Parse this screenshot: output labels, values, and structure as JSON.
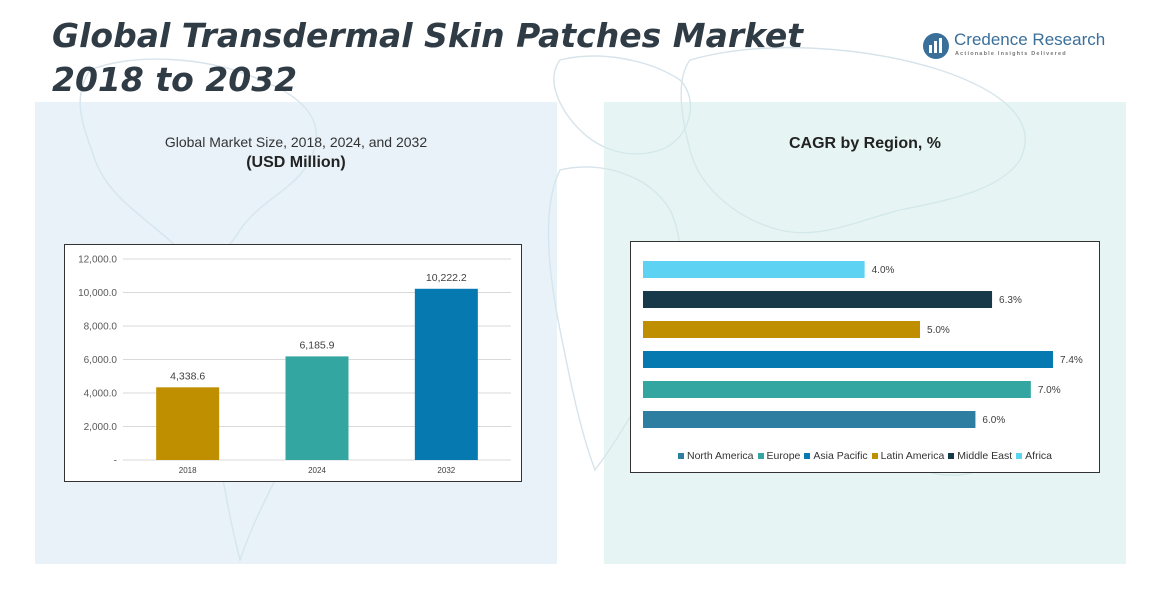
{
  "page": {
    "title": "Global Transdermal Skin Patches Market 2018 to 2032",
    "logo": {
      "name": "Credence Research",
      "tagline": "Actionable Insights Delivered",
      "icon": "bar-chart-logo-icon"
    }
  },
  "colors": {
    "title": "#2f3b45",
    "bar_2018": "#bf8f00",
    "bar_2024": "#33a6a1",
    "bar_2032": "#0579b0",
    "north_america": "#2e7ea1",
    "europe": "#33a6a1",
    "asia_pacific": "#0579b0",
    "latin_america": "#bf8f00",
    "middle_east": "#17394a",
    "africa": "#5ed2f2"
  },
  "chart_data": [
    {
      "type": "bar",
      "title": "Global Market Size, 2018, 2024, and 2032",
      "subtitle": "(USD Million)",
      "categories": [
        "2018",
        "2024",
        "2032"
      ],
      "values": [
        4338.6,
        6185.9,
        10222.2
      ],
      "value_labels": [
        "4,338.6",
        "6,185.9",
        "10,222.2"
      ],
      "colors": [
        "#bf8f00",
        "#33a6a1",
        "#0579b0"
      ],
      "y_ticks": [
        0,
        2000,
        4000,
        6000,
        8000,
        10000,
        12000
      ],
      "y_tick_labels": [
        "-",
        "2,000.0",
        "4,000.0",
        "6,000.0",
        "8,000.0",
        "10,000.0",
        "12,000.0"
      ],
      "ylim": [
        0,
        12000
      ],
      "grid": true
    },
    {
      "type": "bar",
      "orientation": "horizontal",
      "title": "CAGR by Region, %",
      "categories": [
        "North America",
        "Europe",
        "Asia Pacific",
        "Latin America",
        "Middle East",
        "Africa"
      ],
      "values": [
        6.0,
        7.0,
        7.4,
        5.0,
        6.3,
        4.0
      ],
      "value_labels": [
        "6.0%",
        "7.0%",
        "7.4%",
        "5.0%",
        "6.3%",
        "4.0%"
      ],
      "colors": [
        "#2e7ea1",
        "#33a6a1",
        "#0579b0",
        "#bf8f00",
        "#17394a",
        "#5ed2f2"
      ],
      "xlim": [
        0,
        7.4
      ],
      "legend_position": "bottom",
      "grid": false
    }
  ]
}
